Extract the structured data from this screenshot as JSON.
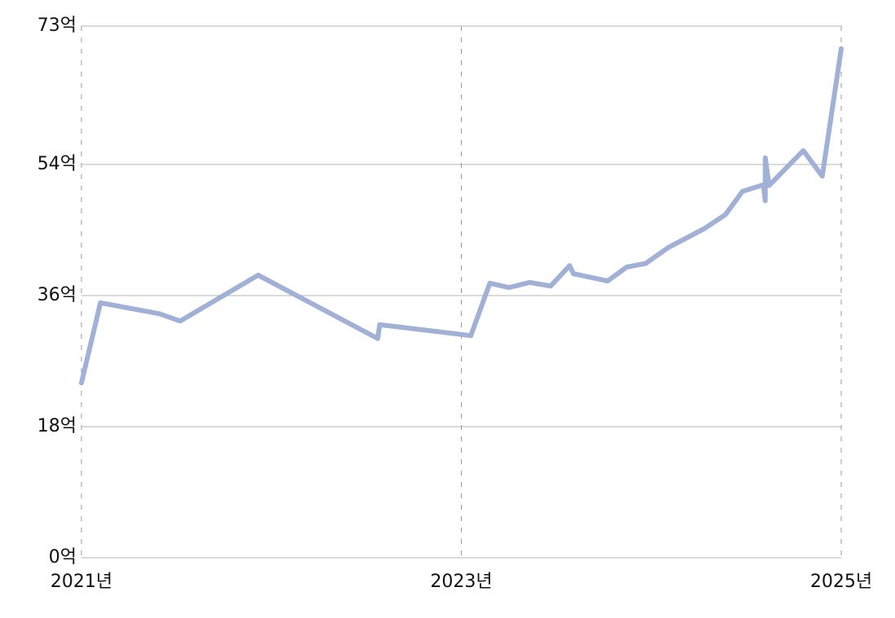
{
  "chart_data": {
    "type": "line",
    "x": [
      2021.0,
      2021.1,
      2021.41,
      2021.52,
      2021.93,
      2022.56,
      2022.57,
      2023.05,
      2023.15,
      2023.25,
      2023.36,
      2023.47,
      2023.57,
      2023.59,
      2023.77,
      2023.87,
      2023.97,
      2024.09,
      2024.28,
      2024.39,
      2024.48,
      2024.59,
      2024.6,
      2024.6,
      2024.62,
      2024.8,
      2024.9,
      2025.0
    ],
    "series": [
      {
        "color": "#a0b0d6",
        "values": [
          24.0,
          35.0,
          33.5,
          32.5,
          38.8,
          30.1,
          32.0,
          30.5,
          37.7,
          37.1,
          37.8,
          37.3,
          40.1,
          39.0,
          38.0,
          39.9,
          40.4,
          42.6,
          45.2,
          47.1,
          50.3,
          51.2,
          49.0,
          54.9,
          51.1,
          55.9,
          52.4,
          69.9
        ]
      }
    ],
    "xlim": [
      2021,
      2025
    ],
    "xticks": [
      {
        "value": 2021,
        "label": "2021년"
      },
      {
        "value": 2023,
        "label": "2023년"
      },
      {
        "value": 2025,
        "label": "2025년"
      }
    ],
    "ylim": [
      0,
      73
    ],
    "yticks": [
      {
        "value": 0,
        "label": "0억"
      },
      {
        "value": 18,
        "label": "18억"
      },
      {
        "value": 36,
        "label": "36억"
      },
      {
        "value": 54,
        "label": "54억"
      },
      {
        "value": 73,
        "label": "73억"
      }
    ],
    "grid": true
  }
}
